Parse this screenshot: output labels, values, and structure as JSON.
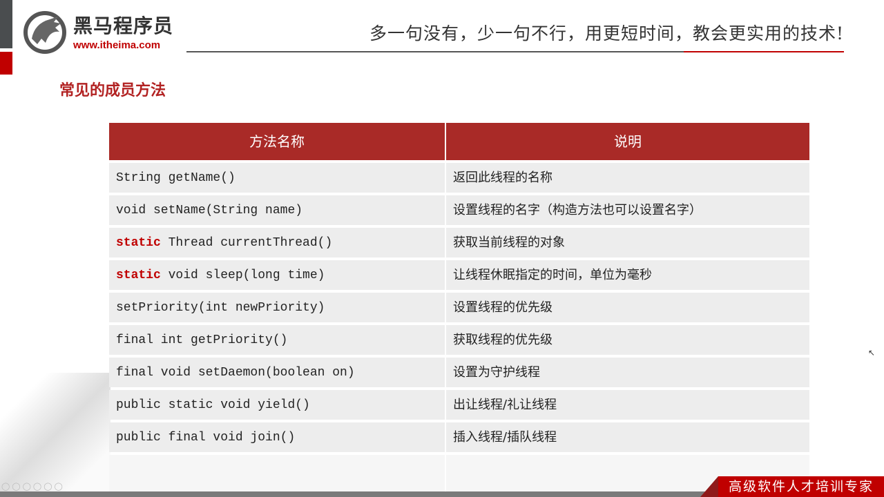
{
  "header": {
    "brand": "黑马程序员",
    "url": "www.itheima.com",
    "tagline": "多一句没有，少一句不行，用更短时间，教会更实用的技术!"
  },
  "slide": {
    "title": "常见的成员方法",
    "table": {
      "columns": [
        "方法名称",
        "说明"
      ],
      "rows": [
        {
          "keyword": "",
          "method": "String getName()",
          "desc": "返回此线程的名称"
        },
        {
          "keyword": "",
          "method": "void setName(String name)",
          "desc": "设置线程的名字（构造方法也可以设置名字）"
        },
        {
          "keyword": "static",
          "method": " Thread currentThread()",
          "desc": "获取当前线程的对象"
        },
        {
          "keyword": "static",
          "method": " void sleep(long time)",
          "desc": "让线程休眠指定的时间，单位为毫秒"
        },
        {
          "keyword": "",
          "method": "setPriority(int newPriority)",
          "desc": "设置线程的优先级"
        },
        {
          "keyword": "",
          "method": "final int getPriority()",
          "desc": "获取线程的优先级"
        },
        {
          "keyword": "",
          "method": "final void setDaemon(boolean on)",
          "desc": "设置为守护线程"
        },
        {
          "keyword": "",
          "method": "public static void yield()",
          "desc": "出让线程/礼让线程"
        },
        {
          "keyword": "",
          "method": "public final void join()",
          "desc": "插入线程/插队线程"
        }
      ]
    }
  },
  "footer": {
    "slogan": "高级软件人才培训专家"
  },
  "colors": {
    "accent": "#c00000",
    "table_header": "#a92a27",
    "row": "#ededed"
  }
}
